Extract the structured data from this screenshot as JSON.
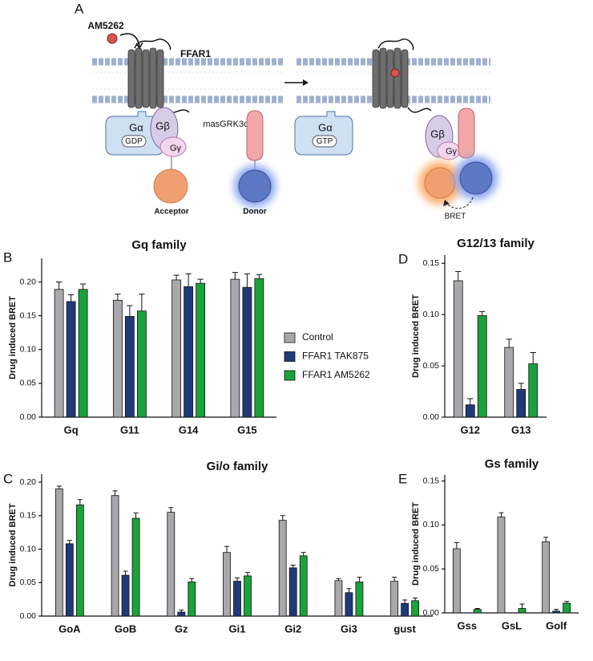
{
  "panel_labels": [
    "A",
    "B",
    "C",
    "D",
    "E"
  ],
  "diagram": {
    "ligand": "AM5262",
    "receptor": "FFAR1",
    "galpha": "Gα",
    "gdp": "GDP",
    "gbeta": "Gβ",
    "ggamma": "Gγ",
    "sensor": "masGRK3ct",
    "acceptor": "Acceptor",
    "donor": "Donor",
    "galpha_2": "Gα",
    "gtp": "GTP",
    "gbeta_2": "Gβ",
    "ggamma_2": "Gγ",
    "bret": "BRET"
  },
  "chart_data": [
    {
      "type": "bar",
      "title": "Gq family",
      "y_label": "Drug induced BRET",
      "categories": [
        "Gq",
        "G11",
        "G14",
        "G15"
      ],
      "ylim": [
        0,
        0.235
      ],
      "yticks": [
        {
          "value": 0,
          "label": "0.00"
        },
        {
          "value": 0.05,
          "label": "0.05"
        },
        {
          "value": 0.1,
          "label": "0.10"
        },
        {
          "value": 0.15,
          "label": "0.15"
        },
        {
          "value": 0.2,
          "label": "0.20"
        }
      ],
      "legend": "right",
      "series": [
        {
          "name": "Control",
          "color": "#a8a8ac",
          "values": [
            0.189,
            0.173,
            0.203,
            0.204
          ],
          "errors": [
            0.011,
            0.009,
            0.007,
            0.01
          ]
        },
        {
          "name": "FFAR1 TAK875",
          "color": "#1f3a7a",
          "values": [
            0.171,
            0.149,
            0.193,
            0.192
          ],
          "errors": [
            0.01,
            0.016,
            0.019,
            0.02
          ]
        },
        {
          "name": "FFAR1 AM5262",
          "color": "#1aa33a",
          "values": [
            0.189,
            0.157,
            0.198,
            0.205
          ],
          "errors": [
            0.008,
            0.025,
            0.006,
            0.006
          ]
        }
      ]
    },
    {
      "type": "bar",
      "title": "G12/13 family",
      "y_label": "Drug induced BRET",
      "categories": [
        "G12",
        "G13"
      ],
      "ylim": [
        0,
        0.158
      ],
      "yticks": [
        {
          "value": 0,
          "label": "0.00"
        },
        {
          "value": 0.05,
          "label": "0.05"
        },
        {
          "value": 0.1,
          "label": "0.10"
        },
        {
          "value": 0.15,
          "label": "0.15"
        }
      ],
      "series": [
        {
          "color": "#a8a8ac",
          "values": [
            0.133,
            0.068
          ],
          "errors": [
            0.009,
            0.008
          ]
        },
        {
          "color": "#1f3a7a",
          "values": [
            0.012,
            0.027
          ],
          "errors": [
            0.006,
            0.006
          ]
        },
        {
          "color": "#1aa33a",
          "values": [
            0.099,
            0.052
          ],
          "errors": [
            0.004,
            0.011
          ]
        }
      ]
    },
    {
      "type": "bar",
      "title": "Gi/o family",
      "y_label": "Drug induced BRET",
      "categories": [
        "GoA",
        "GoB",
        "Gz",
        "Gi1",
        "Gi2",
        "Gi3",
        "gust"
      ],
      "ylim": [
        0,
        0.212
      ],
      "yticks": [
        {
          "value": 0,
          "label": "0.00"
        },
        {
          "value": 0.05,
          "label": "0.05"
        },
        {
          "value": 0.1,
          "label": "0.10"
        },
        {
          "value": 0.15,
          "label": "0.15"
        },
        {
          "value": 0.2,
          "label": "0.20"
        }
      ],
      "series": [
        {
          "color": "#a8a8ac",
          "values": [
            0.19,
            0.18,
            0.155,
            0.095,
            0.143,
            0.053,
            0.052
          ],
          "errors": [
            0.004,
            0.007,
            0.007,
            0.009,
            0.007,
            0.003,
            0.006
          ]
        },
        {
          "color": "#1f3a7a",
          "values": [
            0.108,
            0.061,
            0.006,
            0.052,
            0.072,
            0.035,
            0.019
          ],
          "errors": [
            0.005,
            0.006,
            0.003,
            0.005,
            0.004,
            0.006,
            0.005
          ]
        },
        {
          "color": "#1aa33a",
          "values": [
            0.166,
            0.146,
            0.051,
            0.06,
            0.09,
            0.051,
            0.023
          ],
          "errors": [
            0.008,
            0.008,
            0.005,
            0.005,
            0.005,
            0.007,
            0.004
          ]
        }
      ]
    },
    {
      "type": "bar",
      "title": "Gs family",
      "y_label": "Drug induced BRET",
      "categories": [
        "Gss",
        "GsL",
        "Golf"
      ],
      "ylim": [
        0,
        0.157
      ],
      "yticks": [
        {
          "value": 0,
          "label": "0.00"
        },
        {
          "value": 0.05,
          "label": "0.05"
        },
        {
          "value": 0.1,
          "label": "0.10"
        },
        {
          "value": 0.15,
          "label": "0.15"
        }
      ],
      "series": [
        {
          "color": "#a8a8ac",
          "values": [
            0.073,
            0.109,
            0.081
          ],
          "errors": [
            0.007,
            0.005,
            0.005
          ]
        },
        {
          "color": "#1f3a7a",
          "values": [
            null,
            null,
            0.002
          ],
          "errors": [
            null,
            null,
            0.002
          ]
        },
        {
          "color": "#1aa33a",
          "values": [
            0.004,
            0.005,
            0.011
          ],
          "errors": [
            0.001,
            0.005,
            0.002
          ]
        }
      ]
    }
  ]
}
